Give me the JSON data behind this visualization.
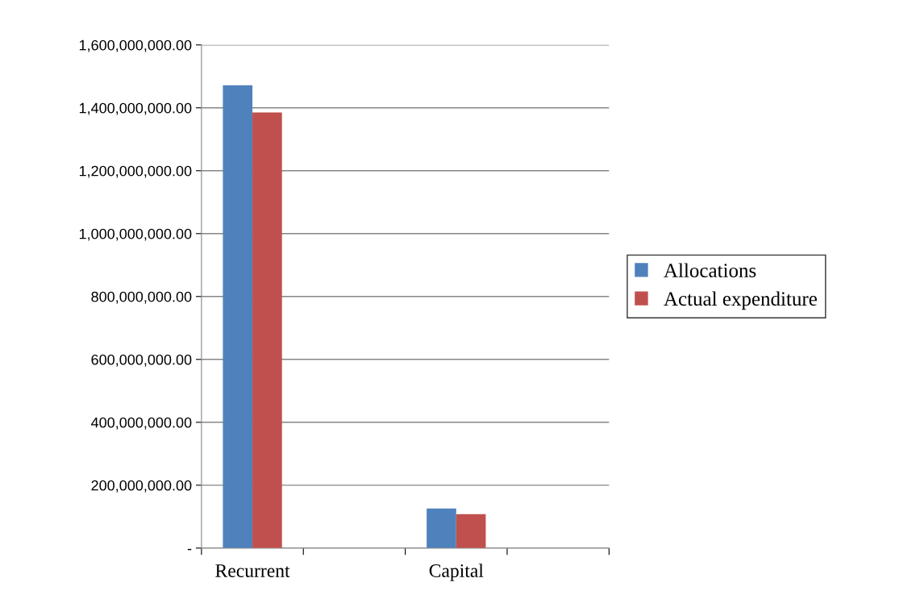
{
  "chart_data": {
    "type": "bar",
    "categories": [
      "Recurrent",
      null,
      "Capital",
      null
    ],
    "series": [
      {
        "name": "Allocations",
        "color": "#4f81bd",
        "values": [
          1472000000,
          null,
          126000000,
          null
        ]
      },
      {
        "name": "Actual expenditure",
        "color": "#c0504d",
        "values": [
          1385000000,
          null,
          108000000,
          null
        ]
      }
    ],
    "ylim": [
      0,
      1600000000
    ],
    "yticks": [
      {
        "value": 0,
        "label": "-"
      },
      {
        "value": 200000000,
        "label": "200,000,000.00"
      },
      {
        "value": 400000000,
        "label": "400,000,000.00"
      },
      {
        "value": 600000000,
        "label": "600,000,000.00"
      },
      {
        "value": 800000000,
        "label": "800,000,000.00"
      },
      {
        "value": 1000000000,
        "label": "1,000,000,000.00"
      },
      {
        "value": 1200000000,
        "label": "1,200,000,000.00"
      },
      {
        "value": 1400000000,
        "label": "1,400,000,000.00"
      },
      {
        "value": 1600000000,
        "label": "1,600,000,000.00"
      }
    ],
    "grid": "y",
    "legend": "right"
  }
}
